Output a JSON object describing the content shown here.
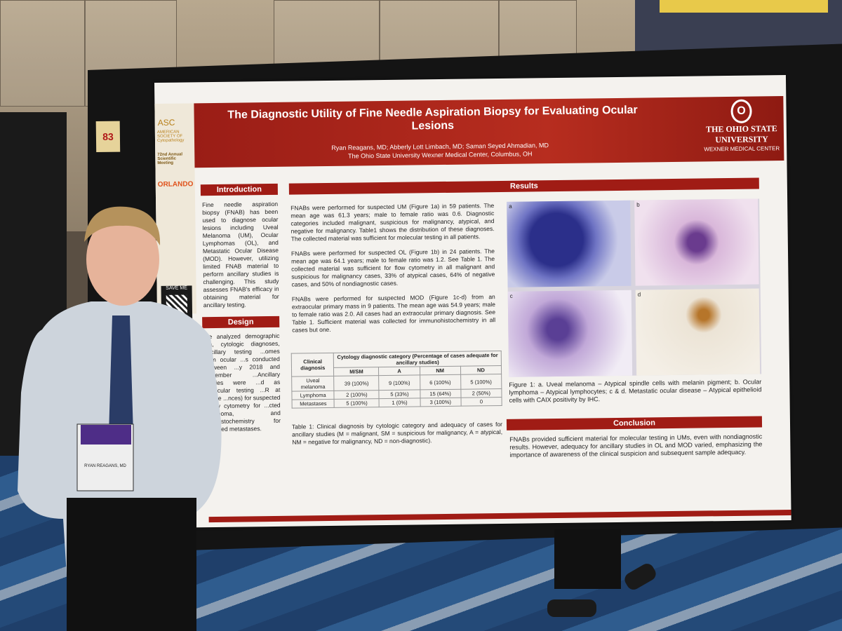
{
  "poster": {
    "number": "83",
    "title": "The Diagnostic Utility of Fine Needle Aspiration Biopsy for Evaluating Ocular Lesions",
    "authors": "Ryan Reagans, MD; Abberly Lott Limbach, MD; Saman Seyed Ahmadian, MD",
    "affiliation": "The Ohio State University Wexner Medical Center, Columbus, OH",
    "logo": {
      "letter": "O",
      "name_line1": "THE OHIO STATE",
      "name_line2": "UNIVERSITY",
      "sub": "WEXNER MEDICAL CENTER"
    },
    "sidebar": {
      "asc_logo": "ASC",
      "asc_name": "AMERICAN SOCIETY OF Cytopathology",
      "meeting": "72nd Annual Scientific Meeting",
      "city": "ORLANDO",
      "save_me": "SAVE ME"
    },
    "introduction": {
      "heading": "Introduction",
      "text": "Fine needle aspiration biopsy (FNAB) has been used to diagnose ocular lesions including Uveal Melanoma (UM), Ocular Lymphomas (OL), and Metastatic Ocular Disease (MOD). However, utilizing limited FNAB material to perform ancillary studies is challenging. This study assesses FNAB's efficacy in obtaining material for ancillary testing."
    },
    "design": {
      "heading": "Design",
      "text": "...e analyzed demographic ...a, cytologic diagnoses, ancillary testing ...omes from ocular ...s conducted between ...y 2018 and December ...Ancillary studies were ...d as molecular testing ...R at Castle ...nces) for suspected ...flow cytometry for ...cted lymphoma, and ...nohistochemistry for ...pected metastases."
    },
    "results": {
      "heading": "Results",
      "bullets": [
        "FNABs were performed for suspected UM (Figure 1a) in 59 patients. The mean age was 61.3 years; male to female ratio was 0.6. Diagnostic categories included malignant, suspicious for malignancy, atypical, and negative for malignancy. Table1 shows the distribution of these diagnoses. The collected material was sufficient for molecular testing in all patients.",
        "FNABs were performed for suspected OL (Figure 1b) in 24 patients. The mean age was 64.1 years; male to female ratio was 1.2. See Table 1. The collected material was sufficient for flow cytometry in all malignant and suspicious for malignancy cases, 33% of atypical cases, 64% of negative cases, and 50% of nondiagnostic cases.",
        "FNABs were performed for suspected MOD (Figure 1c-d) from an extraocular primary mass in 9 patients. The mean age was 54.9 years; male to female ratio was 2.0. All cases had an extraocular primary diagnosis. See Table 1. Sufficient material was collected for immunohistochemistry in all cases but one."
      ],
      "table": {
        "corner": "Clinical diagnosis",
        "group_header": "Cytology diagnostic category (Percentage of cases adequate for ancillary studies)",
        "columns": [
          "M/SM",
          "A",
          "NM",
          "ND"
        ],
        "rows": [
          {
            "label": "Uveal melanoma",
            "cells": [
              "39 (100%)",
              "9 (100%)",
              "6 (100%)",
              "5 (100%)"
            ]
          },
          {
            "label": "Lymphoma",
            "cells": [
              "2 (100%)",
              "5 (33%)",
              "15 (64%)",
              "2 (50%)"
            ]
          },
          {
            "label": "Metastases",
            "cells": [
              "5 (100%)",
              "1 (0%)",
              "3 (100%)",
              "0"
            ]
          }
        ],
        "caption": "Table 1: Clinical diagnosis by cytologic category and adequacy of cases for ancillary studies (M = malignant, SM = suspicious for malignancy, A = atypical, NM = negative for malignancy, ND = non-diagnostic)."
      },
      "figure": {
        "labels": [
          "a",
          "b",
          "c",
          "d"
        ],
        "caption": "Figure 1: a. Uveal melanoma – Atypical spindle cells with melanin pigment; b. Ocular lymphoma – Atypical lymphocytes; c & d. Metastatic ocular disease – Atypical epithelioid cells with CAIX positivity by IHC."
      }
    },
    "conclusion": {
      "heading": "Conclusion",
      "text": "FNABs provided sufficient material for molecular testing in UMs, even with nondiagnostic results. However, adequacy for ancillary studies in OL and MOD varied, emphasizing the importance of awareness of the clinical suspicion and subsequent sample adequacy."
    }
  },
  "badge": {
    "name": "RYAN REAGANS, MD"
  }
}
